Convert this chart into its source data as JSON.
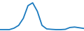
{
  "x": [
    0,
    1,
    2,
    3,
    4,
    5,
    6,
    7,
    8,
    9,
    10,
    11,
    12,
    13,
    14,
    15,
    16,
    17,
    18
  ],
  "y": [
    1,
    1,
    1,
    2,
    4,
    9,
    18,
    20,
    14,
    4,
    1.5,
    1.2,
    1.0,
    1.0,
    1.2,
    2.5,
    2.8,
    2.3,
    1.8
  ],
  "line_color": "#1a7abf",
  "line_width": 1.3,
  "background_left": "#111111",
  "background_right": "#ffffff",
  "ylim": [
    0,
    22
  ],
  "xlim": [
    0,
    18
  ],
  "peak_x": 7,
  "split_x": 9.5
}
